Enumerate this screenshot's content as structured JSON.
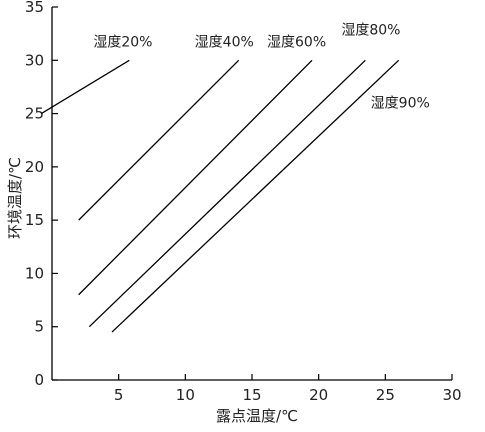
{
  "chart_data": {
    "type": "line",
    "title": "",
    "xlabel": "露点温度/℃",
    "ylabel": "环境温度/℃",
    "xlim": [
      0,
      30
    ],
    "ylim": [
      0,
      35
    ],
    "xticks": [
      5,
      10,
      15,
      20,
      25,
      30
    ],
    "yticks": [
      0,
      5,
      10,
      15,
      20,
      25,
      30,
      35
    ],
    "grid": false,
    "series": [
      {
        "name": "湿度20%",
        "x": [
          -0.8,
          5.8
        ],
        "y": [
          25,
          30
        ]
      },
      {
        "name": "湿度40%",
        "x": [
          2.0,
          14.0
        ],
        "y": [
          15,
          30
        ]
      },
      {
        "name": "湿度60%",
        "x": [
          2.0,
          19.5
        ],
        "y": [
          8,
          30
        ]
      },
      {
        "name": "湿度80%",
        "x": [
          2.8,
          23.5
        ],
        "y": [
          5,
          30
        ]
      },
      {
        "name": "湿度90%",
        "x": [
          4.5,
          26.0
        ],
        "y": [
          4.5,
          30
        ]
      }
    ]
  }
}
